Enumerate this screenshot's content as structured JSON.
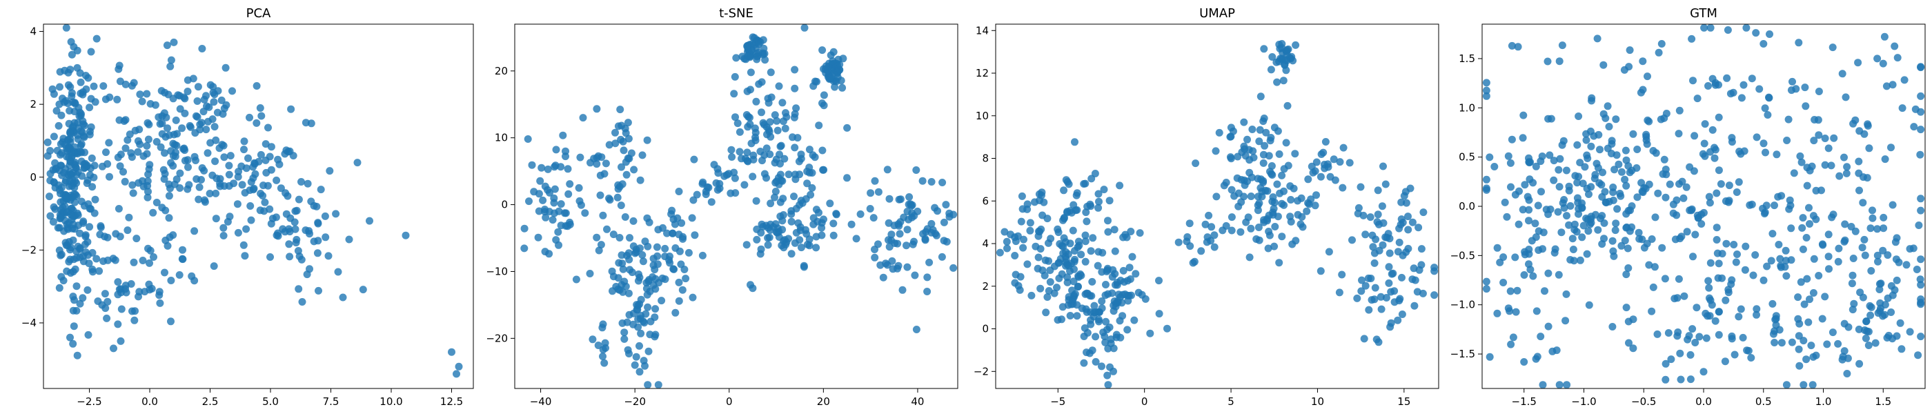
{
  "figure": {
    "title": ""
  },
  "chart_data": [
    {
      "type": "scatter",
      "title": "PCA",
      "xlabel": "",
      "ylabel": "",
      "xlim": [
        -4.4,
        13.4
      ],
      "ylim": [
        -5.8,
        4.2
      ],
      "xticks": [
        -2.5,
        0.0,
        2.5,
        5.0,
        7.5,
        10.0,
        12.5
      ],
      "xtick_labels": [
        "−2.5",
        "0.0",
        "2.5",
        "5.0",
        "7.5",
        "10.0",
        "12.5"
      ],
      "yticks": [
        -4,
        -2,
        0,
        2,
        4
      ],
      "ytick_labels": [
        "−4",
        "−2",
        "0",
        "2",
        "4"
      ],
      "color": "#1f77b4",
      "grid": false,
      "clusters": [
        {
          "cx": -3.2,
          "cy": 0.0,
          "sx": 0.45,
          "sy": 1.6,
          "n": 280
        },
        {
          "cx": 0.3,
          "cy": 0.8,
          "sx": 1.3,
          "sy": 1.1,
          "n": 120
        },
        {
          "cx": 2.0,
          "cy": 1.6,
          "sx": 0.9,
          "sy": 0.8,
          "n": 60
        },
        {
          "cx": 4.2,
          "cy": 0.0,
          "sx": 1.3,
          "sy": 1.1,
          "n": 80
        },
        {
          "cx": 6.2,
          "cy": -1.2,
          "sx": 0.9,
          "sy": 0.9,
          "n": 50
        },
        {
          "cx": -1.5,
          "cy": -2.5,
          "sx": 0.8,
          "sy": 1.0,
          "n": 40
        },
        {
          "cx": 0.5,
          "cy": -2.5,
          "sx": 0.8,
          "sy": 0.7,
          "n": 25
        }
      ],
      "points": [
        [
          -3.0,
          3.0
        ],
        [
          1.0,
          3.7
        ],
        [
          -1.5,
          -4.7
        ],
        [
          -1.2,
          -4.5
        ],
        [
          7.8,
          -2.6
        ],
        [
          8.0,
          -3.3
        ],
        [
          8.6,
          0.4
        ],
        [
          9.1,
          -1.2
        ],
        [
          10.6,
          -1.6
        ],
        [
          12.5,
          -4.8
        ],
        [
          12.7,
          -5.4
        ],
        [
          12.8,
          -5.2
        ],
        [
          -3.3,
          -4.4
        ],
        [
          -4.0,
          0.2
        ]
      ]
    },
    {
      "type": "scatter",
      "title": "t-SNE",
      "xlabel": "",
      "ylabel": "",
      "xlim": [
        -45.5,
        48.5
      ],
      "ylim": [
        -27.5,
        27.0
      ],
      "xticks": [
        -40,
        -20,
        0,
        20,
        40
      ],
      "xtick_labels": [
        "−40",
        "−20",
        "0",
        "20",
        "40"
      ],
      "yticks": [
        -20,
        -10,
        0,
        10,
        20
      ],
      "ytick_labels": [
        "−20",
        "−10",
        "0",
        "10",
        "20"
      ],
      "color": "#1f77b4",
      "grid": false,
      "clusters": [
        {
          "cx": -37,
          "cy": 1.0,
          "sx": 3.0,
          "sy": 4.0,
          "n": 50
        },
        {
          "cx": -25,
          "cy": 6.0,
          "sx": 4.0,
          "sy": 4.0,
          "n": 45
        },
        {
          "cx": -20,
          "cy": -12.0,
          "sx": 4.0,
          "sy": 6.0,
          "n": 110
        },
        {
          "cx": -13,
          "cy": -7.0,
          "sx": 3.0,
          "sy": 5.0,
          "n": 40
        },
        {
          "cx": 5,
          "cy": 23.0,
          "sx": 1.2,
          "sy": 1.0,
          "n": 40
        },
        {
          "cx": 22,
          "cy": 20.0,
          "sx": 1.0,
          "sy": 1.2,
          "n": 45
        },
        {
          "cx": 13,
          "cy": 8.0,
          "sx": 5.0,
          "sy": 6.0,
          "n": 90
        },
        {
          "cx": 5,
          "cy": 11.0,
          "sx": 2.5,
          "sy": 5.0,
          "n": 40
        },
        {
          "cx": 15,
          "cy": -4.0,
          "sx": 4.0,
          "sy": 3.0,
          "n": 50
        },
        {
          "cx": 38,
          "cy": -4.0,
          "sx": 5.0,
          "sy": 4.0,
          "n": 80
        },
        {
          "cx": -3,
          "cy": 3.0,
          "sx": 3.0,
          "sy": 1.5,
          "n": 25
        },
        {
          "cx": 7,
          "cy": -4.0,
          "sx": 1.5,
          "sy": 2.0,
          "n": 15
        }
      ],
      "points": [
        [
          5.0,
          -12.5
        ],
        [
          4.5,
          -12.0
        ],
        [
          25.0,
          4.0
        ],
        [
          -20.0,
          -24.0
        ],
        [
          -19.0,
          -25.0
        ],
        [
          -31.0,
          13.0
        ],
        [
          42.0,
          -13.0
        ],
        [
          46.0,
          0.0
        ]
      ]
    },
    {
      "type": "scatter",
      "title": "UMAP",
      "xlabel": "",
      "ylabel": "",
      "xlim": [
        -8.6,
        17.0
      ],
      "ylim": [
        -2.8,
        14.3
      ],
      "xticks": [
        -5,
        0,
        5,
        10,
        15
      ],
      "xtick_labels": [
        "−5",
        "0",
        "5",
        "10",
        "15"
      ],
      "yticks": [
        -2,
        0,
        2,
        4,
        6,
        8,
        10,
        12,
        14
      ],
      "ytick_labels": [
        "−2",
        "0",
        "2",
        "4",
        "6",
        "8",
        "10",
        "12",
        "14"
      ],
      "color": "#1f77b4",
      "grid": false,
      "clusters": [
        {
          "cx": -2.5,
          "cy": 1.5,
          "sx": 1.5,
          "sy": 1.5,
          "n": 150
        },
        {
          "cx": -5.5,
          "cy": 4.0,
          "sx": 1.3,
          "sy": 1.3,
          "n": 80
        },
        {
          "cx": -3.5,
          "cy": 6.0,
          "sx": 1.0,
          "sy": 0.8,
          "n": 30
        },
        {
          "cx": 7.0,
          "cy": 6.0,
          "sx": 1.5,
          "sy": 1.3,
          "n": 100
        },
        {
          "cx": 6.5,
          "cy": 9.0,
          "sx": 1.0,
          "sy": 0.6,
          "n": 30
        },
        {
          "cx": 8.0,
          "cy": 12.8,
          "sx": 0.4,
          "sy": 0.5,
          "n": 30
        },
        {
          "cx": 14.0,
          "cy": 2.5,
          "sx": 1.3,
          "sy": 1.5,
          "n": 60
        },
        {
          "cx": 14.0,
          "cy": 5.0,
          "sx": 1.0,
          "sy": 0.8,
          "n": 30
        },
        {
          "cx": 10.5,
          "cy": 7.5,
          "sx": 0.8,
          "sy": 0.8,
          "n": 20
        },
        {
          "cx": 3.0,
          "cy": 4.0,
          "sx": 0.8,
          "sy": 0.5,
          "n": 15
        }
      ],
      "points": [
        [
          -1.8,
          -2.0
        ],
        [
          -2.0,
          -1.8
        ],
        [
          -7.5,
          4.3
        ],
        [
          11.5,
          8.5
        ],
        [
          13.5,
          6.5
        ],
        [
          15.5,
          5.0
        ],
        [
          16.0,
          3.0
        ]
      ]
    },
    {
      "type": "scatter",
      "title": "GTM",
      "xlabel": "",
      "ylabel": "",
      "xlim": [
        -1.85,
        1.85
      ],
      "ylim": [
        -1.85,
        1.85
      ],
      "xticks": [
        -1.5,
        -1.0,
        -0.5,
        0.0,
        0.5,
        1.0,
        1.5
      ],
      "xtick_labels": [
        "−1.5",
        "−1.0",
        "−0.5",
        "0.0",
        "0.5",
        "1.0",
        "1.5"
      ],
      "yticks": [
        -1.5,
        -1.0,
        -0.5,
        0.0,
        0.5,
        1.0,
        1.5
      ],
      "ytick_labels": [
        "−1.5",
        "−1.0",
        "−0.5",
        "0.0",
        "0.5",
        "1.0",
        "1.5"
      ],
      "color": "#1f77b4",
      "grid": false,
      "clusters": [
        {
          "cx": -0.9,
          "cy": 0.15,
          "sx": 0.45,
          "sy": 0.45,
          "n": 200
        },
        {
          "cx": 0.4,
          "cy": -0.2,
          "sx": 0.7,
          "sy": 0.7,
          "n": 180
        },
        {
          "cx": -0.2,
          "cy": 1.2,
          "sx": 0.9,
          "sy": 0.4,
          "n": 60
        },
        {
          "cx": 0.5,
          "cy": -1.2,
          "sx": 0.9,
          "sy": 0.35,
          "n": 80
        },
        {
          "cx": 1.2,
          "cy": 0.3,
          "sx": 0.4,
          "sy": 0.6,
          "n": 60
        },
        {
          "cx": -1.4,
          "cy": -0.8,
          "sx": 0.25,
          "sy": 0.5,
          "n": 40
        },
        {
          "cx": 1.4,
          "cy": -1.0,
          "sx": 0.25,
          "sy": 0.4,
          "n": 40
        }
      ],
      "points": [
        [
          -1.6,
          1.63
        ],
        [
          -1.55,
          1.62
        ],
        [
          1.5,
          1.45
        ],
        [
          1.45,
          1.5
        ],
        [
          0.0,
          -1.68
        ],
        [
          -1.5,
          -1.58
        ],
        [
          -1.4,
          -1.55
        ],
        [
          1.3,
          -1.6
        ],
        [
          0.8,
          -1.62
        ],
        [
          -0.35,
          1.65
        ],
        [
          0.5,
          1.65
        ],
        [
          -0.1,
          1.7
        ]
      ]
    }
  ]
}
